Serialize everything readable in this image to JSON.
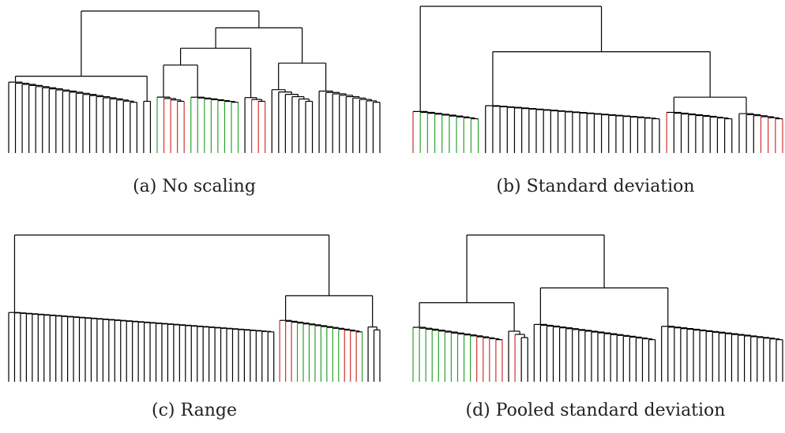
{
  "colors": {
    "black": "#000000",
    "red": "#d0312d",
    "green": "#2ca02c"
  },
  "panels": [
    {
      "id": "a",
      "caption": "(a) No scaling",
      "leaf_colors": [
        "#000000",
        "#d0312d",
        "#2ca02c"
      ]
    },
    {
      "id": "b",
      "caption": "(b) Standard deviation",
      "leaf_colors": [
        "#000000",
        "#d0312d",
        "#2ca02c"
      ]
    },
    {
      "id": "c",
      "caption": "(c) Range",
      "leaf_colors": [
        "#000000",
        "#d0312d",
        "#2ca02c"
      ]
    },
    {
      "id": "d",
      "caption": "(d) Pooled standard deviation",
      "leaf_colors": [
        "#000000",
        "#d0312d",
        "#2ca02c"
      ]
    }
  ]
}
